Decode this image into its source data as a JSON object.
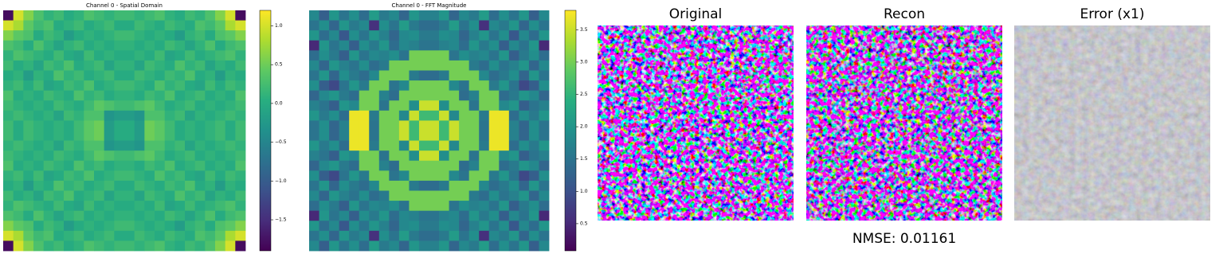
{
  "chart_data": [
    {
      "type": "heatmap",
      "title": "Channel 0 - Spatial Domain",
      "colorbar_lim": [
        -1.9,
        1.2
      ],
      "colorbar_ticks": [
        {
          "value": 1,
          "label": "1.0"
        },
        0.5,
        {
          "value": 0,
          "label": "0.0"
        },
        {
          "value": -0.5,
          "label": "−0.5"
        },
        {
          "value": -1,
          "label": "−1.0"
        },
        {
          "value": -1.5,
          "label": "−1.5"
        }
      ],
      "colormap": "viridis",
      "values": [
        [
          -1.8,
          1.0,
          0.6,
          0.3,
          0.1,
          0.2,
          0.0,
          0.1,
          0.3,
          0.2,
          0.1,
          0.2,
          0.2,
          0.1,
          0.2,
          0.3,
          0.1,
          0.0,
          0.2,
          0.1,
          0.3,
          0.6,
          1.0,
          -1.8
        ],
        [
          1.0,
          0.8,
          0.4,
          0.2,
          0.3,
          0.0,
          0.1,
          0.2,
          0.0,
          0.1,
          0.2,
          0.0,
          0.0,
          0.2,
          0.1,
          0.0,
          0.2,
          0.1,
          0.0,
          0.3,
          0.2,
          0.4,
          0.8,
          1.0
        ],
        [
          0.6,
          0.4,
          0.3,
          0.0,
          0.2,
          0.1,
          -0.2,
          0.0,
          0.1,
          0.0,
          0.1,
          0.2,
          0.2,
          0.1,
          0.0,
          0.1,
          0.0,
          -0.2,
          0.1,
          0.2,
          0.0,
          0.3,
          0.4,
          0.6
        ],
        [
          0.3,
          0.2,
          0.0,
          0.3,
          0.1,
          -0.1,
          0.1,
          0.2,
          0.0,
          0.1,
          0.0,
          0.1,
          0.1,
          0.0,
          0.1,
          0.0,
          0.2,
          0.1,
          -0.1,
          0.1,
          0.3,
          0.0,
          0.2,
          0.3
        ],
        [
          0.1,
          0.3,
          0.2,
          0.1,
          0.0,
          0.2,
          0.0,
          -0.1,
          0.2,
          0.0,
          0.1,
          0.0,
          0.0,
          0.1,
          0.0,
          0.2,
          -0.1,
          0.0,
          0.2,
          0.0,
          0.1,
          0.2,
          0.3,
          0.1
        ],
        [
          0.2,
          0.0,
          0.1,
          -0.1,
          0.2,
          0.1,
          0.3,
          0.0,
          0.1,
          0.2,
          -0.1,
          0.1,
          0.1,
          -0.1,
          0.2,
          0.1,
          0.0,
          0.3,
          0.1,
          0.2,
          -0.1,
          0.1,
          0.0,
          0.2
        ],
        [
          0.0,
          0.1,
          -0.2,
          0.1,
          0.0,
          0.3,
          0.1,
          0.2,
          0.0,
          0.1,
          0.2,
          0.0,
          0.0,
          0.2,
          0.1,
          0.0,
          0.2,
          0.1,
          0.3,
          0.0,
          0.1,
          -0.2,
          0.1,
          0.0
        ],
        [
          0.1,
          0.2,
          0.0,
          0.2,
          -0.1,
          0.0,
          0.2,
          0.1,
          0.3,
          0.0,
          0.1,
          0.2,
          0.2,
          0.1,
          0.0,
          0.3,
          0.1,
          0.2,
          0.0,
          -0.1,
          0.2,
          0.0,
          0.2,
          0.1
        ],
        [
          0.3,
          0.0,
          0.1,
          0.0,
          0.2,
          0.1,
          0.0,
          0.3,
          0.1,
          0.2,
          0.0,
          0.1,
          0.1,
          0.0,
          0.2,
          0.1,
          0.3,
          0.0,
          0.1,
          0.2,
          0.0,
          0.1,
          0.0,
          0.3
        ],
        [
          0.2,
          0.1,
          0.0,
          0.1,
          0.0,
          0.2,
          0.1,
          0.0,
          0.2,
          0.4,
          0.3,
          0.2,
          0.2,
          0.3,
          0.4,
          0.2,
          0.0,
          0.1,
          0.2,
          0.0,
          0.1,
          0.0,
          0.1,
          0.2
        ],
        [
          0.1,
          0.2,
          0.1,
          0.0,
          0.1,
          -0.1,
          0.2,
          0.1,
          0.3,
          0.3,
          -0.3,
          -0.2,
          -0.2,
          -0.3,
          0.3,
          0.3,
          0.1,
          0.2,
          -0.1,
          0.1,
          0.0,
          0.1,
          0.2,
          0.1
        ],
        [
          0.2,
          0.0,
          0.2,
          0.1,
          0.0,
          0.1,
          0.0,
          0.2,
          0.4,
          0.5,
          -0.2,
          0.0,
          0.0,
          -0.2,
          0.5,
          0.4,
          0.2,
          0.0,
          0.1,
          0.0,
          0.1,
          0.2,
          0.0,
          0.2
        ],
        [
          0.2,
          0.0,
          0.2,
          0.1,
          0.0,
          0.1,
          0.0,
          0.2,
          0.4,
          0.5,
          -0.2,
          0.0,
          0.0,
          -0.2,
          0.5,
          0.4,
          0.2,
          0.0,
          0.1,
          0.0,
          0.1,
          0.2,
          0.0,
          0.2
        ],
        [
          0.1,
          0.2,
          0.1,
          0.0,
          0.1,
          -0.1,
          0.2,
          0.1,
          0.3,
          0.3,
          -0.3,
          -0.2,
          -0.2,
          -0.3,
          0.3,
          0.3,
          0.1,
          0.2,
          -0.1,
          0.1,
          0.0,
          0.1,
          0.2,
          0.1
        ],
        [
          0.2,
          0.1,
          0.0,
          0.1,
          0.0,
          0.2,
          0.1,
          0.0,
          0.2,
          0.4,
          0.3,
          0.2,
          0.2,
          0.3,
          0.4,
          0.2,
          0.0,
          0.1,
          0.2,
          0.0,
          0.1,
          0.0,
          0.1,
          0.2
        ],
        [
          0.3,
          0.0,
          0.1,
          0.0,
          0.2,
          0.1,
          0.0,
          0.3,
          0.1,
          0.2,
          0.0,
          0.1,
          0.1,
          0.0,
          0.2,
          0.1,
          0.3,
          0.0,
          0.1,
          0.2,
          0.0,
          0.1,
          0.0,
          0.3
        ],
        [
          0.1,
          0.2,
          0.0,
          0.2,
          -0.1,
          0.0,
          0.2,
          0.1,
          0.3,
          0.0,
          0.1,
          0.2,
          0.2,
          0.1,
          0.0,
          0.3,
          0.1,
          0.2,
          0.0,
          -0.1,
          0.2,
          0.0,
          0.2,
          0.1
        ],
        [
          0.0,
          0.1,
          -0.2,
          0.1,
          0.0,
          0.3,
          0.1,
          0.2,
          0.0,
          0.1,
          0.2,
          0.0,
          0.0,
          0.2,
          0.1,
          0.0,
          0.2,
          0.1,
          0.3,
          0.0,
          0.1,
          -0.2,
          0.1,
          0.0
        ],
        [
          0.2,
          0.0,
          0.1,
          -0.1,
          0.2,
          0.1,
          0.3,
          0.0,
          0.1,
          0.2,
          -0.1,
          0.1,
          0.1,
          -0.1,
          0.2,
          0.1,
          0.0,
          0.3,
          0.1,
          0.2,
          -0.1,
          0.1,
          0.0,
          0.2
        ],
        [
          0.1,
          0.3,
          0.2,
          0.1,
          0.0,
          0.2,
          0.0,
          -0.1,
          0.2,
          0.0,
          0.1,
          0.0,
          0.0,
          0.1,
          0.0,
          0.2,
          -0.1,
          0.0,
          0.2,
          0.0,
          0.1,
          0.2,
          0.3,
          0.1
        ],
        [
          0.3,
          0.2,
          0.0,
          0.3,
          0.1,
          -0.1,
          0.1,
          0.2,
          0.0,
          0.1,
          0.0,
          0.1,
          0.1,
          0.0,
          0.1,
          0.0,
          0.2,
          0.1,
          -0.1,
          0.1,
          0.3,
          0.0,
          0.2,
          0.3
        ],
        [
          0.6,
          0.4,
          0.3,
          0.0,
          0.2,
          0.1,
          -0.2,
          0.0,
          0.1,
          0.0,
          0.1,
          0.2,
          0.2,
          0.1,
          0.0,
          0.1,
          0.0,
          -0.2,
          0.1,
          0.2,
          0.0,
          0.3,
          0.4,
          0.6
        ],
        [
          1.0,
          0.8,
          0.4,
          0.2,
          0.3,
          0.0,
          0.1,
          0.2,
          0.0,
          0.1,
          0.2,
          0.0,
          0.0,
          0.2,
          0.1,
          0.0,
          0.2,
          0.1,
          0.0,
          0.3,
          0.2,
          0.4,
          0.8,
          1.0
        ],
        [
          -1.8,
          1.0,
          0.6,
          0.3,
          0.1,
          0.2,
          0.0,
          0.1,
          0.3,
          0.2,
          0.1,
          0.2,
          0.2,
          0.1,
          0.2,
          0.3,
          0.1,
          0.0,
          0.2,
          0.1,
          0.3,
          0.6,
          1.0,
          -1.8
        ]
      ]
    },
    {
      "type": "heatmap",
      "title": "Channel 0 - FFT Magnitude",
      "colorbar_lim": [
        0.08,
        3.8
      ],
      "colorbar_ticks": [
        0.5,
        {
          "value": 1,
          "label": "1.0"
        },
        1.5,
        {
          "value": 2,
          "label": "2.0"
        },
        2.5,
        {
          "value": 3,
          "label": "3.0"
        },
        3.5
      ],
      "colormap": "viridis",
      "values": [
        [
          1.8,
          1.2,
          2.0,
          1.5,
          1.9,
          1.4,
          2.1,
          1.6,
          1.8,
          1.3,
          2.0,
          1.7,
          1.7,
          2.0,
          1.3,
          1.8,
          1.6,
          2.1,
          1.4,
          1.9,
          1.5,
          2.0,
          1.2,
          1.8
        ],
        [
          1.5,
          1.9,
          1.3,
          2.0,
          1.6,
          1.8,
          0.6,
          1.9,
          1.5,
          2.1,
          1.6,
          1.4,
          1.4,
          1.6,
          2.1,
          1.5,
          1.9,
          0.6,
          1.8,
          1.6,
          2.0,
          1.3,
          1.9,
          1.5
        ],
        [
          2.0,
          1.4,
          1.8,
          1.1,
          1.9,
          1.5,
          2.0,
          1.7,
          1.3,
          1.8,
          1.9,
          1.6,
          1.6,
          1.9,
          1.8,
          1.3,
          1.7,
          2.0,
          1.5,
          1.9,
          1.1,
          1.8,
          1.4,
          2.0
        ],
        [
          0.5,
          2.0,
          1.5,
          1.8,
          1.2,
          1.9,
          1.6,
          2.0,
          1.4,
          1.8,
          1.7,
          1.5,
          1.5,
          1.7,
          1.8,
          1.4,
          2.0,
          1.6,
          1.9,
          1.2,
          1.8,
          1.5,
          2.0,
          0.5
        ],
        [
          1.4,
          1.9,
          1.6,
          1.2,
          2.0,
          1.5,
          1.8,
          1.7,
          1.9,
          1.5,
          3.0,
          3.0,
          3.0,
          3.0,
          1.5,
          1.9,
          1.7,
          1.8,
          1.5,
          2.0,
          1.2,
          1.6,
          1.9,
          1.4
        ],
        [
          1.8,
          1.3,
          2.0,
          1.7,
          1.5,
          1.9,
          1.4,
          1.6,
          3.0,
          3.0,
          3.0,
          3.0,
          3.0,
          3.0,
          3.0,
          3.0,
          1.6,
          1.4,
          1.9,
          1.5,
          1.7,
          2.0,
          1.3,
          1.8
        ],
        [
          1.5,
          2.0,
          1.3,
          1.9,
          1.6,
          1.4,
          1.8,
          3.0,
          3.0,
          3.0,
          1.6,
          1.4,
          1.4,
          1.6,
          3.0,
          3.0,
          3.0,
          1.8,
          1.4,
          1.6,
          1.9,
          1.3,
          2.0,
          1.5
        ],
        [
          1.9,
          1.2,
          0.9,
          1.5,
          2.0,
          1.6,
          3.0,
          3.0,
          1.5,
          1.8,
          3.0,
          3.0,
          3.0,
          3.0,
          1.8,
          1.5,
          3.0,
          3.0,
          1.6,
          2.0,
          1.5,
          0.9,
          1.2,
          1.9
        ],
        [
          1.3,
          1.8,
          2.0,
          1.6,
          1.4,
          3.0,
          3.0,
          1.7,
          1.4,
          3.0,
          3.0,
          3.0,
          3.0,
          3.0,
          3.0,
          1.4,
          1.7,
          3.0,
          3.0,
          1.4,
          1.6,
          2.0,
          1.8,
          1.3
        ],
        [
          1.7,
          1.5,
          1.2,
          2.0,
          1.8,
          3.0,
          3.0,
          1.5,
          3.0,
          3.0,
          1.9,
          3.5,
          3.5,
          1.9,
          3.0,
          3.0,
          1.5,
          3.0,
          3.0,
          1.8,
          2.0,
          1.2,
          1.5,
          1.7
        ],
        [
          2.0,
          1.6,
          1.9,
          1.4,
          3.7,
          3.7,
          1.6,
          3.0,
          3.0,
          1.8,
          3.5,
          2.6,
          2.6,
          3.5,
          1.8,
          3.0,
          3.0,
          1.6,
          3.7,
          3.7,
          1.4,
          1.9,
          1.6,
          2.0
        ],
        [
          1.5,
          1.9,
          1.3,
          1.7,
          3.7,
          3.7,
          1.5,
          3.0,
          3.0,
          3.5,
          2.6,
          3.5,
          3.5,
          2.6,
          3.5,
          3.0,
          3.0,
          1.5,
          3.7,
          3.7,
          1.7,
          1.3,
          1.9,
          1.5
        ],
        [
          1.5,
          1.9,
          1.3,
          1.7,
          3.7,
          3.7,
          1.5,
          3.0,
          3.0,
          3.5,
          2.6,
          3.5,
          3.5,
          2.6,
          3.5,
          3.0,
          3.0,
          1.5,
          3.7,
          3.7,
          1.7,
          1.3,
          1.9,
          1.5
        ],
        [
          2.0,
          1.6,
          1.9,
          1.4,
          3.7,
          3.7,
          1.6,
          3.0,
          3.0,
          1.8,
          3.5,
          2.6,
          2.6,
          3.5,
          1.8,
          3.0,
          3.0,
          1.6,
          3.7,
          3.7,
          1.4,
          1.9,
          1.6,
          2.0
        ],
        [
          1.7,
          1.5,
          1.2,
          2.0,
          1.8,
          3.0,
          3.0,
          1.5,
          3.0,
          3.0,
          1.9,
          3.5,
          3.5,
          1.9,
          3.0,
          3.0,
          1.5,
          3.0,
          3.0,
          1.8,
          2.0,
          1.2,
          1.5,
          1.7
        ],
        [
          1.3,
          1.8,
          2.0,
          1.6,
          1.4,
          3.0,
          3.0,
          1.7,
          1.4,
          3.0,
          3.0,
          3.0,
          3.0,
          3.0,
          3.0,
          1.4,
          1.7,
          3.0,
          3.0,
          1.4,
          1.6,
          2.0,
          1.8,
          1.3
        ],
        [
          1.9,
          1.2,
          0.9,
          1.5,
          2.0,
          1.6,
          3.0,
          3.0,
          1.5,
          1.8,
          3.0,
          3.0,
          3.0,
          3.0,
          1.8,
          1.5,
          3.0,
          3.0,
          1.6,
          2.0,
          1.5,
          0.9,
          1.2,
          1.9
        ],
        [
          1.5,
          2.0,
          1.3,
          1.9,
          1.6,
          1.4,
          1.8,
          3.0,
          3.0,
          3.0,
          1.6,
          1.4,
          1.4,
          1.6,
          3.0,
          3.0,
          3.0,
          1.8,
          1.4,
          1.6,
          1.9,
          1.3,
          2.0,
          1.5
        ],
        [
          1.8,
          1.3,
          2.0,
          1.7,
          1.5,
          1.9,
          1.4,
          1.6,
          3.0,
          3.0,
          3.0,
          3.0,
          3.0,
          3.0,
          3.0,
          3.0,
          1.6,
          1.4,
          1.9,
          1.5,
          1.7,
          2.0,
          1.3,
          1.8
        ],
        [
          1.4,
          1.9,
          1.6,
          1.2,
          2.0,
          1.5,
          1.8,
          1.7,
          1.9,
          1.5,
          3.0,
          3.0,
          3.0,
          3.0,
          1.5,
          1.9,
          1.7,
          1.8,
          1.5,
          2.0,
          1.2,
          1.6,
          1.9,
          1.4
        ],
        [
          0.5,
          2.0,
          1.5,
          1.8,
          1.2,
          1.9,
          1.6,
          2.0,
          1.4,
          1.8,
          1.7,
          1.5,
          1.5,
          1.7,
          1.8,
          1.4,
          2.0,
          1.6,
          1.9,
          1.2,
          1.8,
          1.5,
          2.0,
          0.5
        ],
        [
          2.0,
          1.4,
          1.8,
          1.1,
          1.9,
          1.5,
          2.0,
          1.7,
          1.3,
          1.8,
          1.9,
          1.6,
          1.6,
          1.9,
          1.8,
          1.3,
          1.7,
          2.0,
          1.5,
          1.9,
          1.1,
          1.8,
          1.4,
          2.0
        ],
        [
          1.5,
          1.9,
          1.3,
          2.0,
          1.6,
          1.8,
          0.6,
          1.9,
          1.5,
          2.1,
          1.6,
          1.4,
          1.4,
          1.6,
          2.1,
          1.5,
          1.9,
          0.6,
          1.8,
          1.6,
          2.0,
          1.3,
          1.9,
          1.5
        ],
        [
          1.8,
          1.2,
          2.0,
          1.5,
          1.9,
          1.4,
          2.1,
          1.6,
          1.8,
          1.3,
          2.0,
          1.7,
          1.7,
          2.0,
          1.3,
          1.8,
          1.6,
          2.1,
          1.4,
          1.9,
          1.5,
          2.0,
          1.2,
          1.8
        ]
      ]
    }
  ],
  "image_panels": {
    "titles": [
      "Original",
      "Recon",
      "Error (x1)"
    ],
    "caption": "NMSE: 0.01161"
  }
}
